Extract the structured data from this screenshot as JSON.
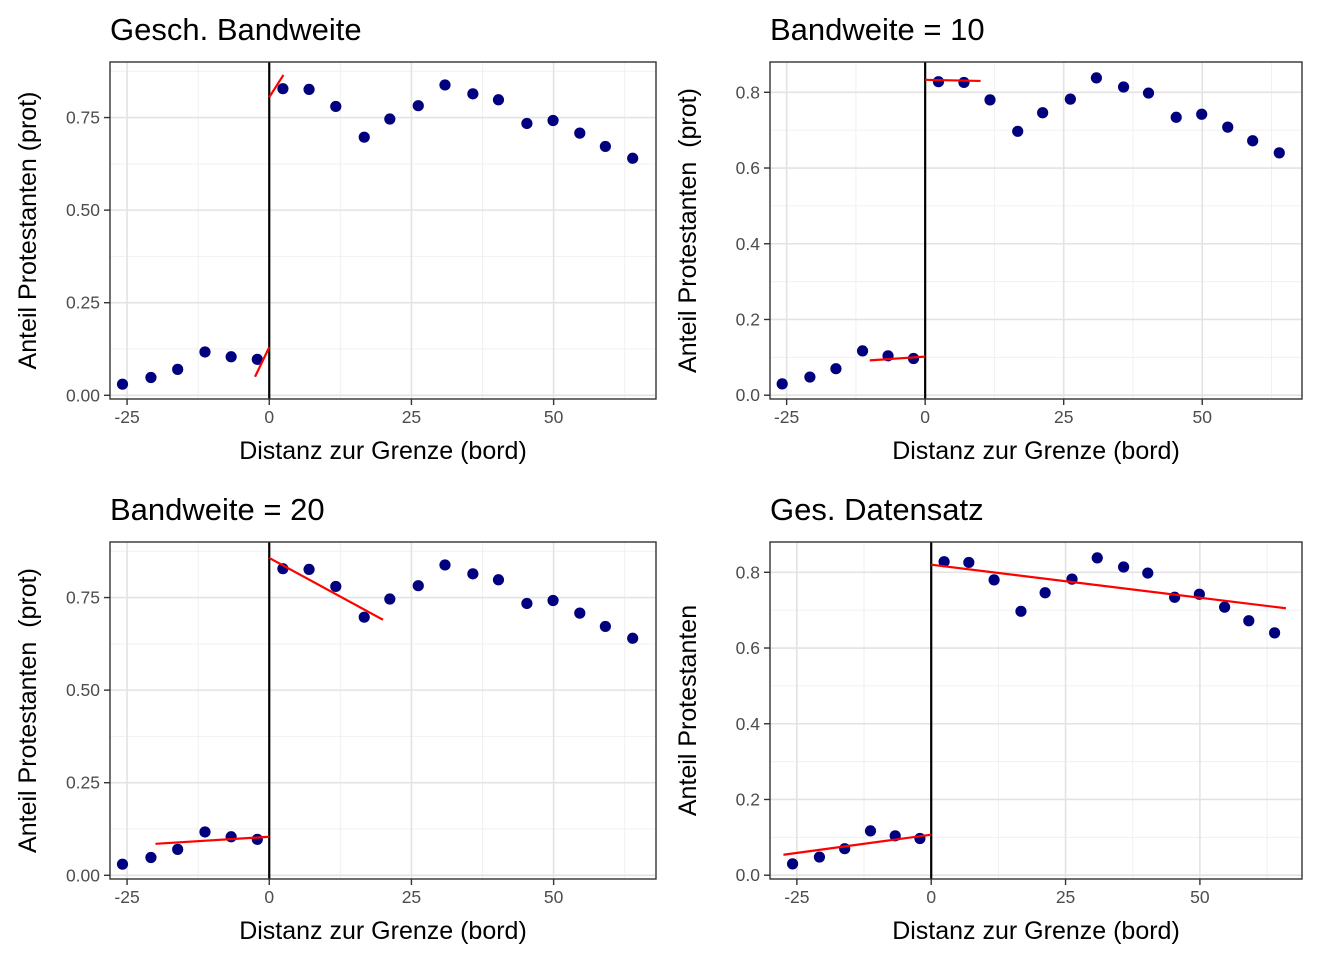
{
  "chart_data": [
    {
      "type": "scatter",
      "title": "Gesch. Bandweite",
      "xlabel": "Distanz zur Grenze (bord)",
      "ylabel": "Anteil Protestanten (prot)",
      "xlim": [
        -28,
        68
      ],
      "ylim": [
        -0.01,
        0.9
      ],
      "xticks": [
        -25,
        0,
        25,
        50
      ],
      "yticks": [
        0,
        0.25,
        0.5,
        0.75
      ],
      "ytick_labels": [
        "0.00",
        "0.25",
        "0.50",
        "0.75"
      ],
      "cutoff": 0,
      "grid": true,
      "points": {
        "x": [
          -25.8,
          -20.8,
          -16.1,
          -11.3,
          -6.7,
          -2.1,
          2.4,
          7.0,
          11.7,
          16.7,
          21.2,
          26.2,
          30.9,
          35.8,
          40.3,
          45.3,
          49.9,
          54.6,
          59.1,
          63.9
        ],
        "y": [
          0.03,
          0.048,
          0.07,
          0.117,
          0.104,
          0.097,
          0.828,
          0.826,
          0.78,
          0.697,
          0.746,
          0.782,
          0.838,
          0.814,
          0.798,
          0.734,
          0.742,
          0.708,
          0.672,
          0.64
        ]
      },
      "fit_lines": [
        {
          "x": [
            -2.5,
            0
          ],
          "y": [
            0.05,
            0.13
          ]
        },
        {
          "x": [
            0,
            2.5
          ],
          "y": [
            0.805,
            0.865
          ]
        }
      ],
      "colors": {
        "points": "#00007f",
        "fit": "#ff0000",
        "cutoff": "#000000"
      }
    },
    {
      "type": "scatter",
      "title": "Bandweite = 10",
      "xlabel": "Distanz zur Grenze (bord)",
      "ylabel": "Anteil Protestanten  (prot)",
      "xlim": [
        -28,
        68
      ],
      "ylim": [
        -0.01,
        0.88
      ],
      "xticks": [
        -25,
        0,
        25,
        50
      ],
      "yticks": [
        0,
        0.2,
        0.4,
        0.6,
        0.8
      ],
      "ytick_labels": [
        "0.0",
        "0.2",
        "0.4",
        "0.6",
        "0.8"
      ],
      "cutoff": 0,
      "grid": true,
      "points": {
        "x": [
          -25.8,
          -20.8,
          -16.1,
          -11.3,
          -6.7,
          -2.1,
          2.4,
          7.0,
          11.7,
          16.7,
          21.2,
          26.2,
          30.9,
          35.8,
          40.3,
          45.3,
          49.9,
          54.6,
          59.1,
          63.9
        ],
        "y": [
          0.03,
          0.048,
          0.07,
          0.117,
          0.104,
          0.097,
          0.828,
          0.826,
          0.78,
          0.697,
          0.746,
          0.782,
          0.838,
          0.814,
          0.798,
          0.734,
          0.742,
          0.708,
          0.672,
          0.64
        ]
      },
      "fit_lines": [
        {
          "x": [
            -10,
            0
          ],
          "y": [
            0.092,
            0.102
          ]
        },
        {
          "x": [
            0,
            10
          ],
          "y": [
            0.833,
            0.83
          ]
        }
      ],
      "colors": {
        "points": "#00007f",
        "fit": "#ff0000",
        "cutoff": "#000000"
      }
    },
    {
      "type": "scatter",
      "title": "Bandweite = 20",
      "xlabel": "Distanz zur Grenze (bord)",
      "ylabel": "Anteil Protestanten  (prot)",
      "xlim": [
        -28,
        68
      ],
      "ylim": [
        -0.01,
        0.9
      ],
      "xticks": [
        -25,
        0,
        25,
        50
      ],
      "yticks": [
        0,
        0.25,
        0.5,
        0.75
      ],
      "ytick_labels": [
        "0.00",
        "0.25",
        "0.50",
        "0.75"
      ],
      "cutoff": 0,
      "grid": true,
      "points": {
        "x": [
          -25.8,
          -20.8,
          -16.1,
          -11.3,
          -6.7,
          -2.1,
          2.4,
          7.0,
          11.7,
          16.7,
          21.2,
          26.2,
          30.9,
          35.8,
          40.3,
          45.3,
          49.9,
          54.6,
          59.1,
          63.9
        ],
        "y": [
          0.03,
          0.048,
          0.07,
          0.117,
          0.104,
          0.097,
          0.828,
          0.826,
          0.78,
          0.697,
          0.746,
          0.782,
          0.838,
          0.814,
          0.798,
          0.734,
          0.742,
          0.708,
          0.672,
          0.64
        ]
      },
      "fit_lines": [
        {
          "x": [
            -20,
            0
          ],
          "y": [
            0.085,
            0.104
          ]
        },
        {
          "x": [
            0,
            20
          ],
          "y": [
            0.857,
            0.69
          ]
        }
      ],
      "colors": {
        "points": "#00007f",
        "fit": "#ff0000",
        "cutoff": "#000000"
      }
    },
    {
      "type": "scatter",
      "title": "Ges. Datensatz",
      "xlabel": "Distanz zur Grenze (bord)",
      "ylabel": "Anteil Protestanten",
      "xlim": [
        -30,
        69
      ],
      "ylim": [
        -0.01,
        0.88
      ],
      "xticks": [
        -25,
        0,
        25,
        50
      ],
      "yticks": [
        0,
        0.2,
        0.4,
        0.6,
        0.8
      ],
      "ytick_labels": [
        "0.0",
        "0.2",
        "0.4",
        "0.6",
        "0.8"
      ],
      "cutoff": 0,
      "grid": true,
      "points": {
        "x": [
          -25.8,
          -20.8,
          -16.1,
          -11.3,
          -6.7,
          -2.1,
          2.4,
          7.0,
          11.7,
          16.7,
          21.2,
          26.2,
          30.9,
          35.8,
          40.3,
          45.3,
          49.9,
          54.6,
          59.1,
          63.9
        ],
        "y": [
          0.03,
          0.048,
          0.07,
          0.117,
          0.104,
          0.097,
          0.828,
          0.826,
          0.78,
          0.697,
          0.746,
          0.782,
          0.838,
          0.814,
          0.798,
          0.734,
          0.742,
          0.708,
          0.672,
          0.64
        ]
      },
      "fit_lines": [
        {
          "x": [
            -27.5,
            0
          ],
          "y": [
            0.054,
            0.107
          ]
        },
        {
          "x": [
            0,
            66
          ],
          "y": [
            0.82,
            0.705
          ]
        }
      ],
      "colors": {
        "points": "#00007f",
        "fit": "#ff0000",
        "cutoff": "#000000"
      }
    }
  ]
}
